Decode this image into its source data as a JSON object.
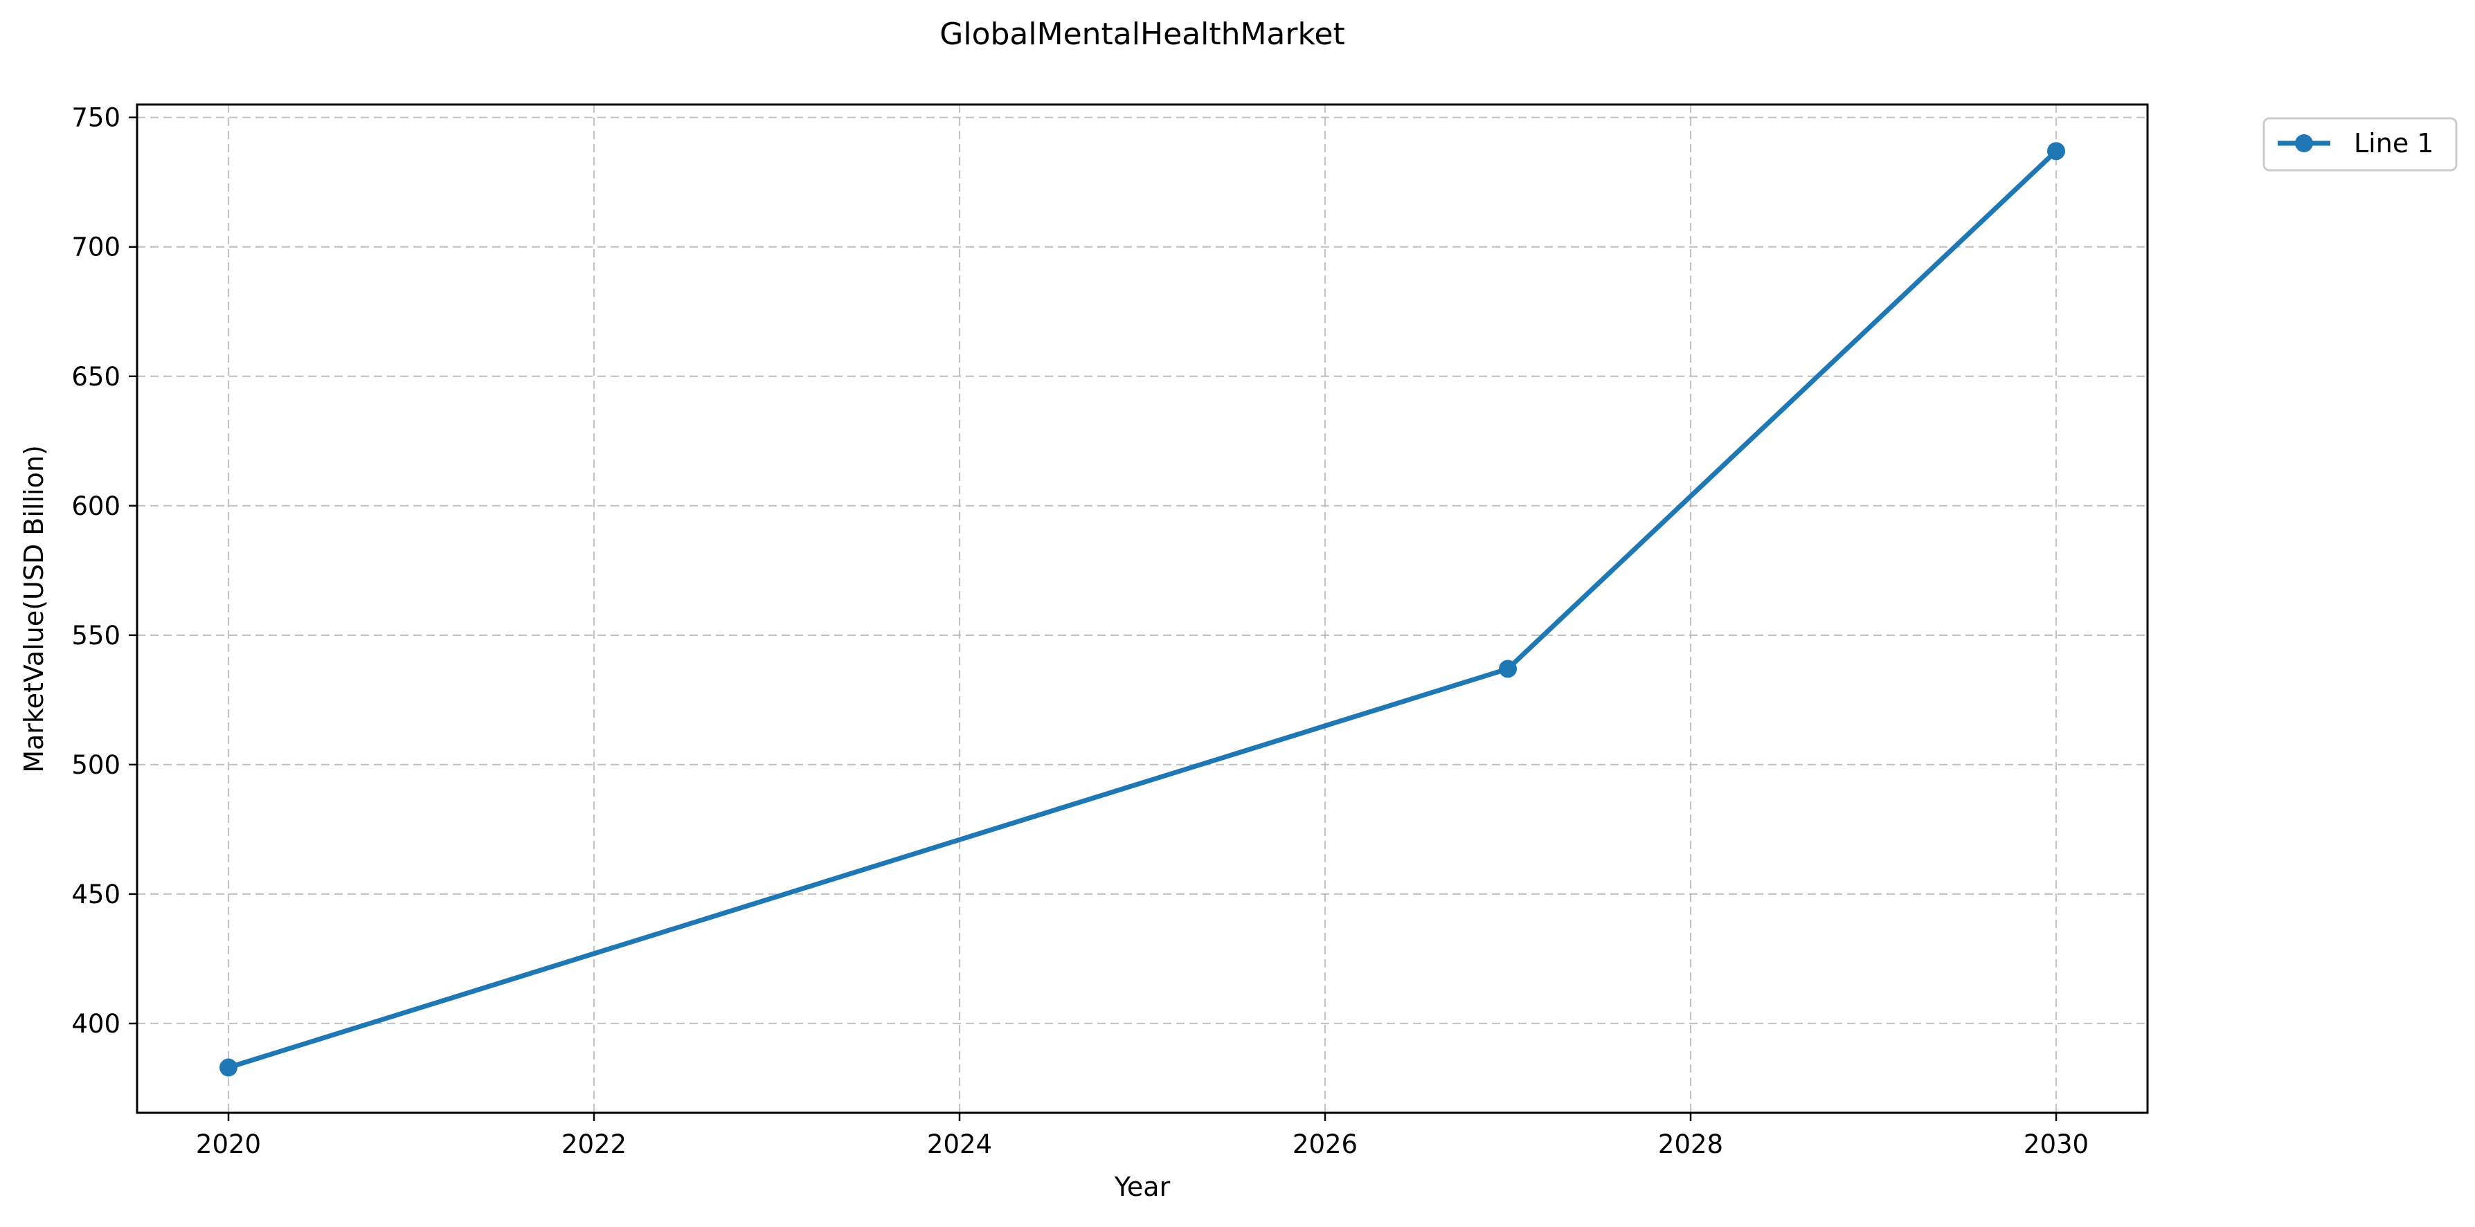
{
  "chart_data": {
    "type": "line",
    "title": "GlobalMentalHealthMarket",
    "xlabel": "Year",
    "ylabel": "MarketValue(USD Billion)",
    "xlim": [
      2019.5,
      2030.5
    ],
    "ylim": [
      365.5,
      755
    ],
    "xticks": [
      2020,
      2022,
      2024,
      2026,
      2028,
      2030
    ],
    "yticks": [
      400,
      450,
      500,
      550,
      600,
      650,
      700,
      750
    ],
    "grid": true,
    "legend": "outside-top-right",
    "series": [
      {
        "name": "Line 1",
        "color": "#1f77b4",
        "marker": "circle",
        "x": [
          2020,
          2027,
          2030
        ],
        "y": [
          383,
          537,
          737
        ]
      }
    ]
  }
}
